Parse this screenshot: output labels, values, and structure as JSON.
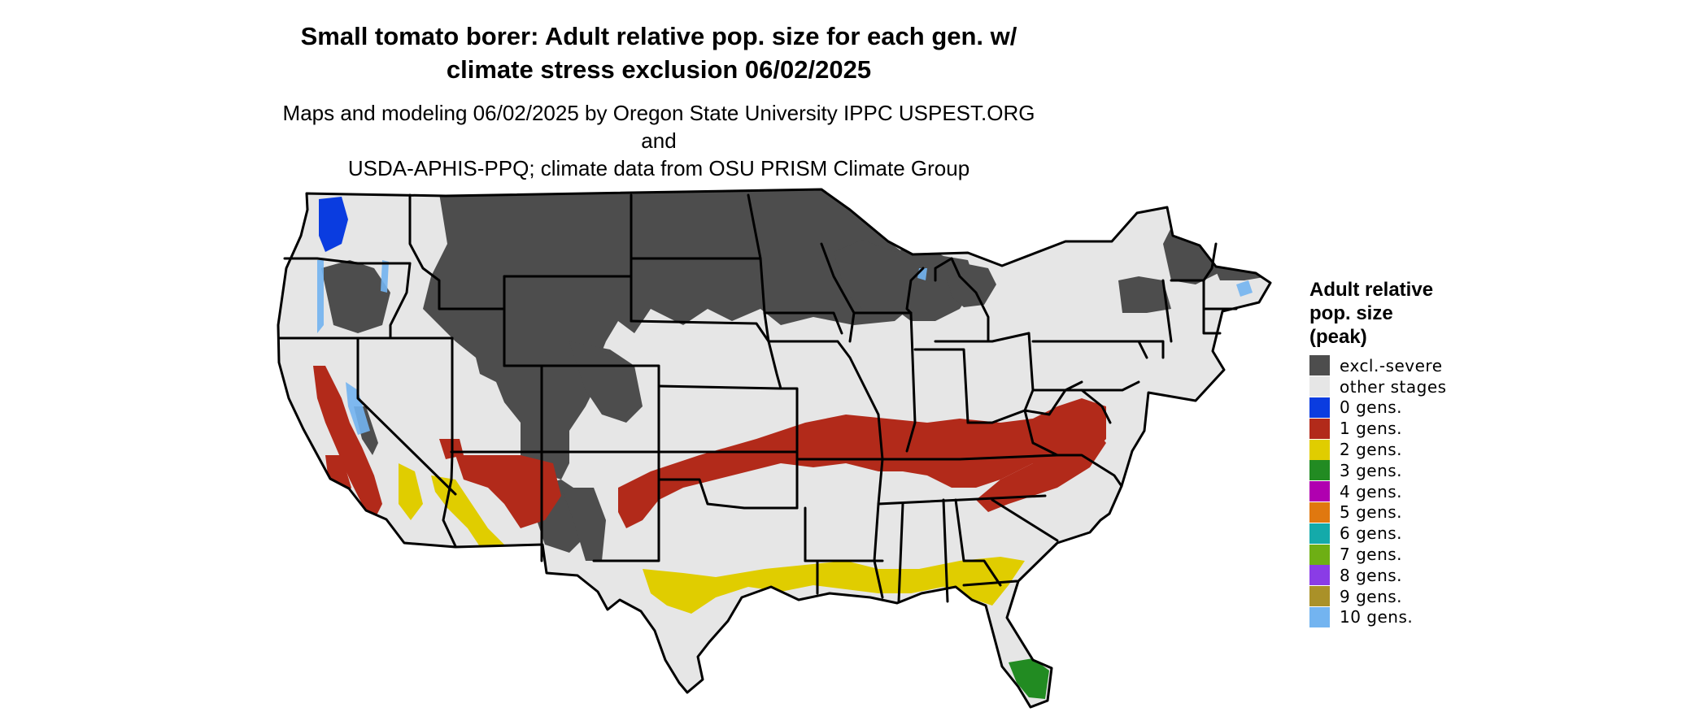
{
  "map": {
    "title_line1": "Small tomato borer: Adult relative pop. size for each gen. w/",
    "title_line2": "climate stress exclusion 06/02/2025",
    "subtitle_line1": "Maps and modeling 06/02/2025 by Oregon State University IPPC USPEST.ORG and",
    "subtitle_line2": "USDA-APHIS-PPQ; climate data from OSU PRISM Climate Group"
  },
  "legend": {
    "title_line1": "Adult relative",
    "title_line2": "pop. size",
    "title_line3": "(peak)",
    "items": [
      {
        "label": "excl.-severe",
        "color": "#4d4d4d"
      },
      {
        "label": "other stages",
        "color": "#e6e6e6"
      },
      {
        "label": "0 gens.",
        "color": "#0a3ce0"
      },
      {
        "label": "1 gens.",
        "color": "#b22a1a"
      },
      {
        "label": "2 gens.",
        "color": "#e0cd00"
      },
      {
        "label": "3 gens.",
        "color": "#228b22"
      },
      {
        "label": "4 gens.",
        "color": "#b000b0"
      },
      {
        "label": "5 gens.",
        "color": "#e0780f"
      },
      {
        "label": "6 gens.",
        "color": "#14aaaa"
      },
      {
        "label": "7 gens.",
        "color": "#6eaf14"
      },
      {
        "label": "8 gens.",
        "color": "#8a3ce6"
      },
      {
        "label": "9 gens.",
        "color": "#aa9128"
      },
      {
        "label": "10 gens.",
        "color": "#73b4f0"
      }
    ]
  }
}
